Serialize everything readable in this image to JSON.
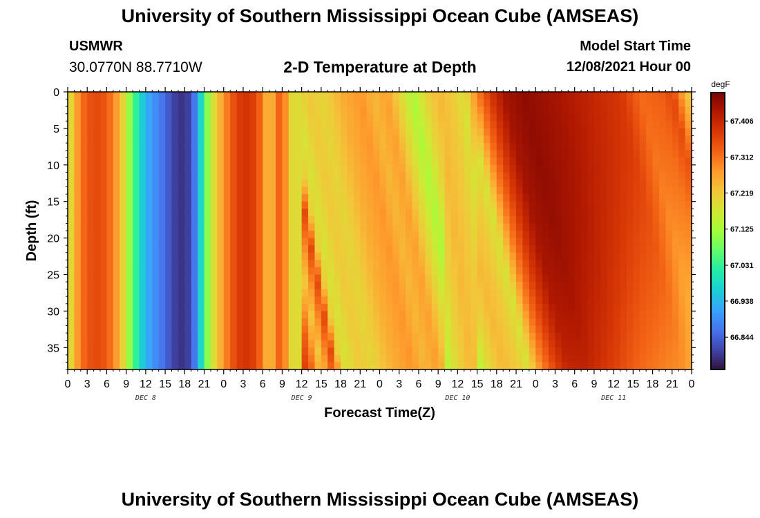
{
  "page": {
    "title": "University of Southern Mississippi Ocean Cube (AMSEAS)",
    "title_repeat": "University of Southern Mississippi Ocean Cube (AMSEAS)",
    "station": "USMWR",
    "coordinates": "30.0770N  88.7710W",
    "subtitle": "2-D Temperature at Depth",
    "model_start_label": "Model Start Time",
    "model_start_value": "12/08/2021 Hour 00"
  },
  "chart_data": {
    "type": "heatmap",
    "title": "2-D Temperature at Depth",
    "xlabel": "Forecast Time(Z)",
    "ylabel": "Depth (ft)",
    "x_hours_range": [
      0,
      96
    ],
    "y_range": [
      0,
      38
    ],
    "y_ticks": [
      0,
      5,
      10,
      15,
      20,
      25,
      30,
      35
    ],
    "x_tick_labels": [
      "0",
      "3",
      "6",
      "9",
      "12",
      "15",
      "18",
      "21",
      "0",
      "3",
      "6",
      "9",
      "12",
      "15",
      "18",
      "21",
      "0",
      "3",
      "6",
      "9",
      "12",
      "15",
      "18",
      "21",
      "0",
      "3",
      "6",
      "9",
      "12",
      "15",
      "18",
      "21",
      "0"
    ],
    "day_labels": [
      {
        "label": "DEC 8",
        "hour": 12
      },
      {
        "label": "DEC 9",
        "hour": 36
      },
      {
        "label": "DEC 10",
        "hour": 60
      },
      {
        "label": "DEC 11",
        "hour": 84
      }
    ],
    "colorbar": {
      "units": "degF",
      "min": 66.76,
      "max": 67.48,
      "tick_values": [
        66.844,
        66.938,
        67.031,
        67.125,
        67.219,
        67.312,
        67.406
      ],
      "tick_labels": [
        "66.844",
        "66.938",
        "67.031",
        "67.125",
        "67.219",
        "67.312",
        "67.406"
      ],
      "colormap": [
        "#30123b",
        "#4145ab",
        "#4675ed",
        "#39a2fc",
        "#1bcfd4",
        "#24eca6",
        "#61fc6c",
        "#a4fc3b",
        "#d1e834",
        "#f3c63a",
        "#fe9b2d",
        "#f36315",
        "#d93806",
        "#b11901",
        "#7a0403"
      ]
    },
    "surface_temperature_by_hour": [
      {
        "hour": 0,
        "value": 67.16
      },
      {
        "hour": 1,
        "value": 67.24
      },
      {
        "hour": 2,
        "value": 67.31
      },
      {
        "hour": 4,
        "value": 67.36
      },
      {
        "hour": 6,
        "value": 67.34
      },
      {
        "hour": 8,
        "value": 67.25
      },
      {
        "hour": 10,
        "value": 67.06
      },
      {
        "hour": 12,
        "value": 66.93
      },
      {
        "hour": 15,
        "value": 66.85
      },
      {
        "hour": 17,
        "value": 66.79
      },
      {
        "hour": 19,
        "value": 66.81
      },
      {
        "hour": 20,
        "value": 66.92
      },
      {
        "hour": 22,
        "value": 67.16
      },
      {
        "hour": 24,
        "value": 67.28
      },
      {
        "hour": 26,
        "value": 67.37
      },
      {
        "hour": 28,
        "value": 67.39
      },
      {
        "hour": 29.5,
        "value": 67.33
      },
      {
        "hour": 31,
        "value": 67.22
      },
      {
        "hour": 32,
        "value": 67.29
      },
      {
        "hour": 33,
        "value": 67.36
      },
      {
        "hour": 34,
        "value": 67.21
      },
      {
        "hour": 35,
        "value": 67.18
      },
      {
        "hour": 37,
        "value": 67.22
      },
      {
        "hour": 39,
        "value": 67.2
      },
      {
        "hour": 42,
        "value": 67.25
      },
      {
        "hour": 45,
        "value": 67.28
      },
      {
        "hour": 47,
        "value": 67.24
      },
      {
        "hour": 49,
        "value": 67.27
      },
      {
        "hour": 51,
        "value": 67.2
      },
      {
        "hour": 53,
        "value": 67.13
      },
      {
        "hour": 55,
        "value": 67.2
      },
      {
        "hour": 57,
        "value": 67.24
      },
      {
        "hour": 59,
        "value": 67.22
      },
      {
        "hour": 61,
        "value": 67.18
      },
      {
        "hour": 63,
        "value": 67.3
      },
      {
        "hour": 65,
        "value": 67.38
      },
      {
        "hour": 67,
        "value": 67.44
      },
      {
        "hour": 70,
        "value": 67.46
      },
      {
        "hour": 75,
        "value": 67.44
      },
      {
        "hour": 80,
        "value": 67.41
      },
      {
        "hour": 85,
        "value": 67.38
      },
      {
        "hour": 88,
        "value": 67.32
      },
      {
        "hour": 91,
        "value": 67.33
      },
      {
        "hour": 93,
        "value": 67.36
      },
      {
        "hour": 95,
        "value": 67.24
      },
      {
        "hour": 96,
        "value": 67.2
      }
    ],
    "notes": "Warm (orange/red) and cool (blue) bands are nearly uniform with depth through Dec 9 mid-day; from Dec 9 afternoon onward the fronts tilt, with the cool band and the very warm (dark red) band arriving later at greater depth."
  }
}
